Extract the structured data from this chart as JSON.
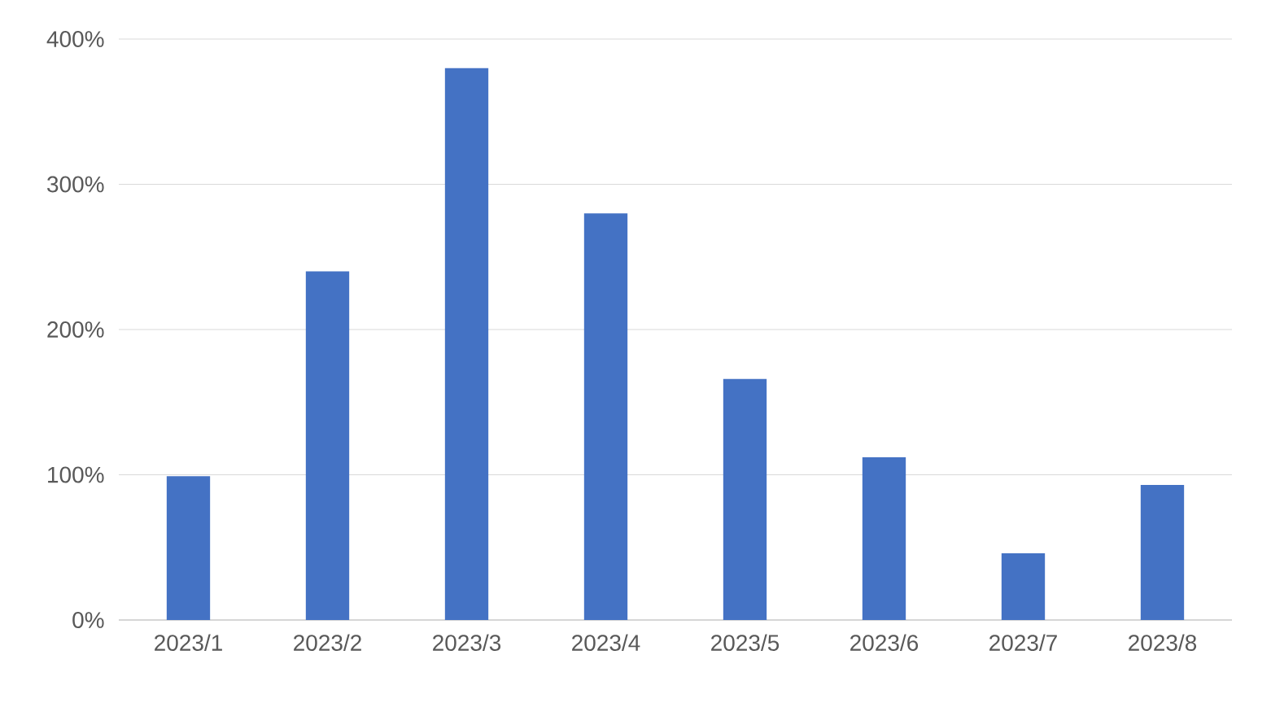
{
  "chart_data": {
    "type": "bar",
    "categories": [
      "2023/1",
      "2023/2",
      "2023/3",
      "2023/4",
      "2023/5",
      "2023/6",
      "2023/7",
      "2023/8"
    ],
    "values": [
      99,
      240,
      380,
      280,
      166,
      112,
      46,
      93
    ],
    "color": "#4472c4",
    "ylim": [
      0,
      400
    ],
    "yticks": [
      {
        "value": 0,
        "label": "0%"
      },
      {
        "value": 100,
        "label": "100%"
      },
      {
        "value": 200,
        "label": "200%"
      },
      {
        "value": 300,
        "label": "300%"
      },
      {
        "value": 400,
        "label": "400%"
      }
    ],
    "grid": "y"
  }
}
